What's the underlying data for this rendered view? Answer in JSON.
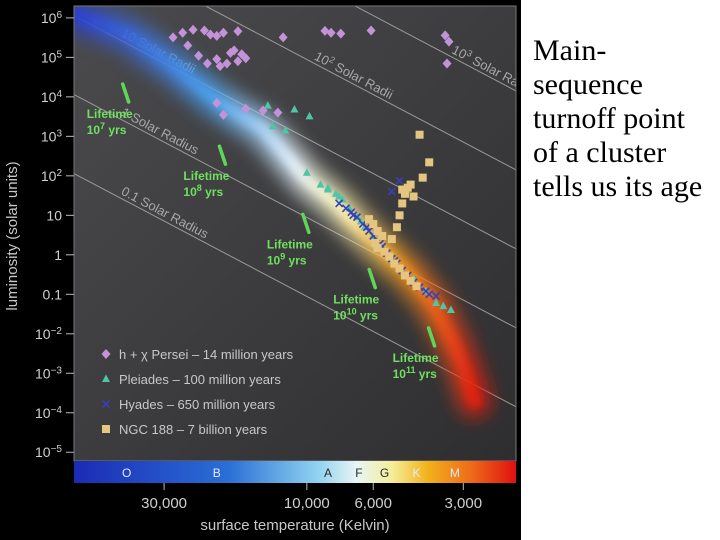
{
  "caption": "Main-sequence turnoff point of a cluster tells us its age",
  "chart_data": {
    "type": "scatter",
    "title": "",
    "xlabel": "surface temperature (Kelvin)",
    "ylabel": "luminosity (solar units)",
    "x_scale": "log-reversed",
    "y_scale": "log",
    "xlim": [
      60000,
      2000
    ],
    "ylim": [
      6e-06,
      2000000
    ],
    "x_ticks": [
      {
        "value": 30000,
        "label": "30,000"
      },
      {
        "value": 10000,
        "label": "10,000"
      },
      {
        "value": 6000,
        "label": "6,000"
      },
      {
        "value": 3000,
        "label": "3,000"
      }
    ],
    "y_ticks": [
      {
        "value": 1000000,
        "base": "10",
        "exp": "6"
      },
      {
        "value": 100000,
        "base": "10",
        "exp": "5"
      },
      {
        "value": 10000,
        "base": "10",
        "exp": "4"
      },
      {
        "value": 1000,
        "base": "10",
        "exp": "3"
      },
      {
        "value": 100,
        "base": "10",
        "exp": "2"
      },
      {
        "value": 10,
        "base": "10",
        "exp": ""
      },
      {
        "value": 1,
        "base": "1",
        "exp": ""
      },
      {
        "value": 0.1,
        "base": "0.1",
        "exp": ""
      },
      {
        "value": 0.01,
        "base": "10",
        "exp": "−2"
      },
      {
        "value": 0.001,
        "base": "10",
        "exp": "−3"
      },
      {
        "value": 0.0001,
        "base": "10",
        "exp": "−4"
      },
      {
        "value": 1e-05,
        "base": "10",
        "exp": "−5"
      }
    ],
    "spectral_classes": [
      {
        "label": "O",
        "t": 40000
      },
      {
        "label": "B",
        "t": 20000
      },
      {
        "label": "A",
        "t": 8500
      },
      {
        "label": "F",
        "t": 6700
      },
      {
        "label": "G",
        "t": 5500
      },
      {
        "label": "K",
        "t": 4300
      },
      {
        "label": "M",
        "t": 3200
      }
    ],
    "radius_lines": [
      {
        "label": "10",
        "sup": "2",
        "rest": " Solar Radii",
        "radius": 100
      },
      {
        "label": "10",
        "sup": "3",
        "rest": " Solar Radii",
        "radius": 1000
      },
      {
        "label": "10 Solar Radii",
        "sup": "",
        "rest": "",
        "radius": 10
      },
      {
        "label": "1 Solar Radius",
        "sup": "",
        "rest": "",
        "radius": 1
      },
      {
        "label": "0.1 Solar Radius",
        "sup": "",
        "rest": "",
        "radius": 0.1
      }
    ],
    "lifetimes": [
      {
        "pre": "Lifetime",
        "base": "10",
        "exp": "7",
        "unit": " yrs",
        "t": 40000,
        "l": 30000
      },
      {
        "pre": "Lifetime",
        "base": "10",
        "exp": "8",
        "unit": " yrs",
        "t": 19000,
        "l": 800
      },
      {
        "pre": "Lifetime",
        "base": "10",
        "exp": "9",
        "unit": " yrs",
        "t": 10000,
        "l": 15
      },
      {
        "pre": "Lifetime",
        "base": "10",
        "exp": "10",
        "unit": " yrs",
        "t": 6000,
        "l": 0.6
      },
      {
        "pre": "Lifetime",
        "base": "10",
        "exp": "11",
        "unit": " yrs",
        "t": 3800,
        "l": 0.02
      }
    ],
    "series": [
      {
        "name": "h + χ Persei",
        "age_label": "14 million years",
        "color": "#c392d8",
        "marker": "diamond",
        "points": [
          [
            28000,
            320000
          ],
          [
            26000,
            420000
          ],
          [
            24000,
            500000
          ],
          [
            22000,
            480000
          ],
          [
            21000,
            380000
          ],
          [
            19000,
            420000
          ],
          [
            17000,
            460000
          ],
          [
            20000,
            350000
          ],
          [
            25000,
            200000
          ],
          [
            23000,
            110000
          ],
          [
            20000,
            90000
          ],
          [
            18000,
            130000
          ],
          [
            17500,
            150000
          ],
          [
            16500,
            120000
          ],
          [
            17000,
            80000
          ],
          [
            18500,
            70000
          ],
          [
            19500,
            60000
          ],
          [
            21500,
            70000
          ],
          [
            16000,
            95000
          ],
          [
            12000,
            320000
          ],
          [
            8700,
            470000
          ],
          [
            8300,
            420000
          ],
          [
            7700,
            400000
          ],
          [
            6100,
            480000
          ],
          [
            3450,
            360000
          ],
          [
            3350,
            250000
          ],
          [
            3400,
            70000
          ],
          [
            20000,
            7000
          ],
          [
            16000,
            5000
          ],
          [
            14000,
            4500
          ],
          [
            12500,
            4000
          ],
          [
            19000,
            3500
          ]
        ]
      },
      {
        "name": "Pleiades",
        "age_label": "100 million years",
        "color": "#4fc5a6",
        "marker": "triangle",
        "points": [
          [
            13500,
            6000
          ],
          [
            11000,
            4800
          ],
          [
            9800,
            3200
          ],
          [
            13000,
            1800
          ],
          [
            11800,
            1400
          ],
          [
            10000,
            120
          ],
          [
            9000,
            60
          ],
          [
            8500,
            50
          ],
          [
            8000,
            35
          ],
          [
            7600,
            25
          ],
          [
            7200,
            15
          ],
          [
            6800,
            9
          ],
          [
            6400,
            5
          ],
          [
            6000,
            3
          ],
          [
            5600,
            1.5
          ],
          [
            5200,
            0.8
          ],
          [
            4800,
            0.4
          ],
          [
            4400,
            0.25
          ],
          [
            4000,
            0.12
          ],
          [
            3700,
            0.06
          ],
          [
            3500,
            0.05
          ],
          [
            3300,
            0.04
          ],
          [
            8500,
            45
          ],
          [
            7800,
            30
          ],
          [
            6600,
            7
          ]
        ]
      },
      {
        "name": "Hyades",
        "age_label": "650 million years",
        "color": "#3a3fb8",
        "marker": "x",
        "points": [
          [
            7800,
            20
          ],
          [
            7400,
            15
          ],
          [
            7100,
            12
          ],
          [
            6800,
            9
          ],
          [
            6500,
            6
          ],
          [
            6200,
            4
          ],
          [
            6000,
            3
          ],
          [
            5800,
            2.2
          ],
          [
            5600,
            1.6
          ],
          [
            5400,
            1.1
          ],
          [
            5200,
            0.8
          ],
          [
            5000,
            0.6
          ],
          [
            4800,
            0.4
          ],
          [
            4600,
            0.3
          ],
          [
            4400,
            0.2
          ],
          [
            4200,
            0.15
          ],
          [
            4000,
            0.12
          ],
          [
            3900,
            0.1
          ],
          [
            3700,
            0.09
          ],
          [
            4900,
            75
          ],
          [
            5200,
            40
          ],
          [
            7000,
            10
          ],
          [
            6300,
            5
          ],
          [
            5700,
            1.9
          ],
          [
            5100,
            0.7
          ]
        ]
      },
      {
        "name": "NGC 188",
        "age_label": "7 billion years",
        "color": "#e5c57f",
        "marker": "square",
        "points": [
          [
            6200,
            8
          ],
          [
            6000,
            6
          ],
          [
            5800,
            4
          ],
          [
            5600,
            3
          ],
          [
            5900,
            2
          ],
          [
            5500,
            1.2
          ],
          [
            5300,
            0.9
          ],
          [
            5100,
            0.6
          ],
          [
            4900,
            0.45
          ],
          [
            4700,
            0.3
          ],
          [
            4500,
            0.22
          ],
          [
            4300,
            0.16
          ],
          [
            5200,
            2.5
          ],
          [
            5000,
            5
          ],
          [
            4900,
            10
          ],
          [
            4800,
            20
          ],
          [
            4700,
            35
          ],
          [
            4600,
            50
          ],
          [
            4500,
            60
          ],
          [
            4400,
            30
          ],
          [
            4800,
            45
          ],
          [
            4200,
            1100
          ],
          [
            3900,
            220
          ],
          [
            4100,
            90
          ],
          [
            5800,
            1.5
          ]
        ]
      }
    ]
  }
}
